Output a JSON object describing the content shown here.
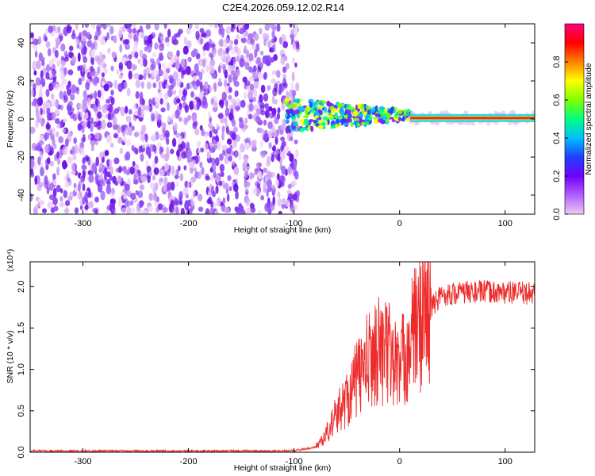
{
  "title": "C2E4.2026.059.12.02.R14",
  "chart_data": [
    {
      "type": "heatmap",
      "xlabel": "Height of straight line (km)",
      "ylabel": "Frequency (Hz)",
      "xlim": [
        -350,
        128
      ],
      "ylim": [
        -50,
        50
      ],
      "x_ticks": [
        -300,
        -200,
        -100,
        0,
        100
      ],
      "y_ticks": [
        -40,
        -20,
        0,
        20,
        40
      ],
      "colorbar": {
        "label": "Normalized spectral amplitude",
        "range": [
          0,
          1
        ],
        "ticks": [
          "0.0",
          "0.2",
          "0.4",
          "0.6",
          "0.8"
        ],
        "colors": [
          "#f0c8f0",
          "#b060ff",
          "#7000ff",
          "#2040ff",
          "#00c0ff",
          "#00ff80",
          "#80ff00",
          "#ffff00",
          "#ff8000",
          "#ff0000",
          "#ff0080"
        ]
      },
      "noise_region_x": [
        -350,
        -100
      ],
      "signal_line_x": [
        10,
        128
      ],
      "signal_line_frequency": 0.5
    },
    {
      "type": "line",
      "xlabel": "Height of straight line (km)",
      "ylabel": "SNR (10 * v/v)",
      "scale_label": "(x10⁴)",
      "xlim": [
        -350,
        128
      ],
      "ylim": [
        0,
        23000
      ],
      "x_ticks": [
        -300,
        -200,
        -100,
        0,
        100
      ],
      "y_ticks": [
        "0.0",
        "0.5",
        "1.0",
        "1.5",
        "2.0"
      ],
      "y_tick_values": [
        0,
        5000,
        10000,
        15000,
        20000
      ],
      "color": "#ee2a2a",
      "series": [
        {
          "x": [
            -350,
            -120,
            -100,
            -80,
            -70,
            -60,
            -50,
            -40,
            -30,
            -20,
            -10,
            0,
            10,
            20,
            30,
            40,
            60,
            80,
            100,
            128
          ],
          "values": [
            150,
            150,
            200,
            600,
            2000,
            4500,
            6500,
            9000,
            11000,
            12500,
            12000,
            10000,
            13500,
            16000,
            17500,
            19000,
            19300,
            19400,
            19300,
            19200
          ]
        }
      ]
    }
  ]
}
